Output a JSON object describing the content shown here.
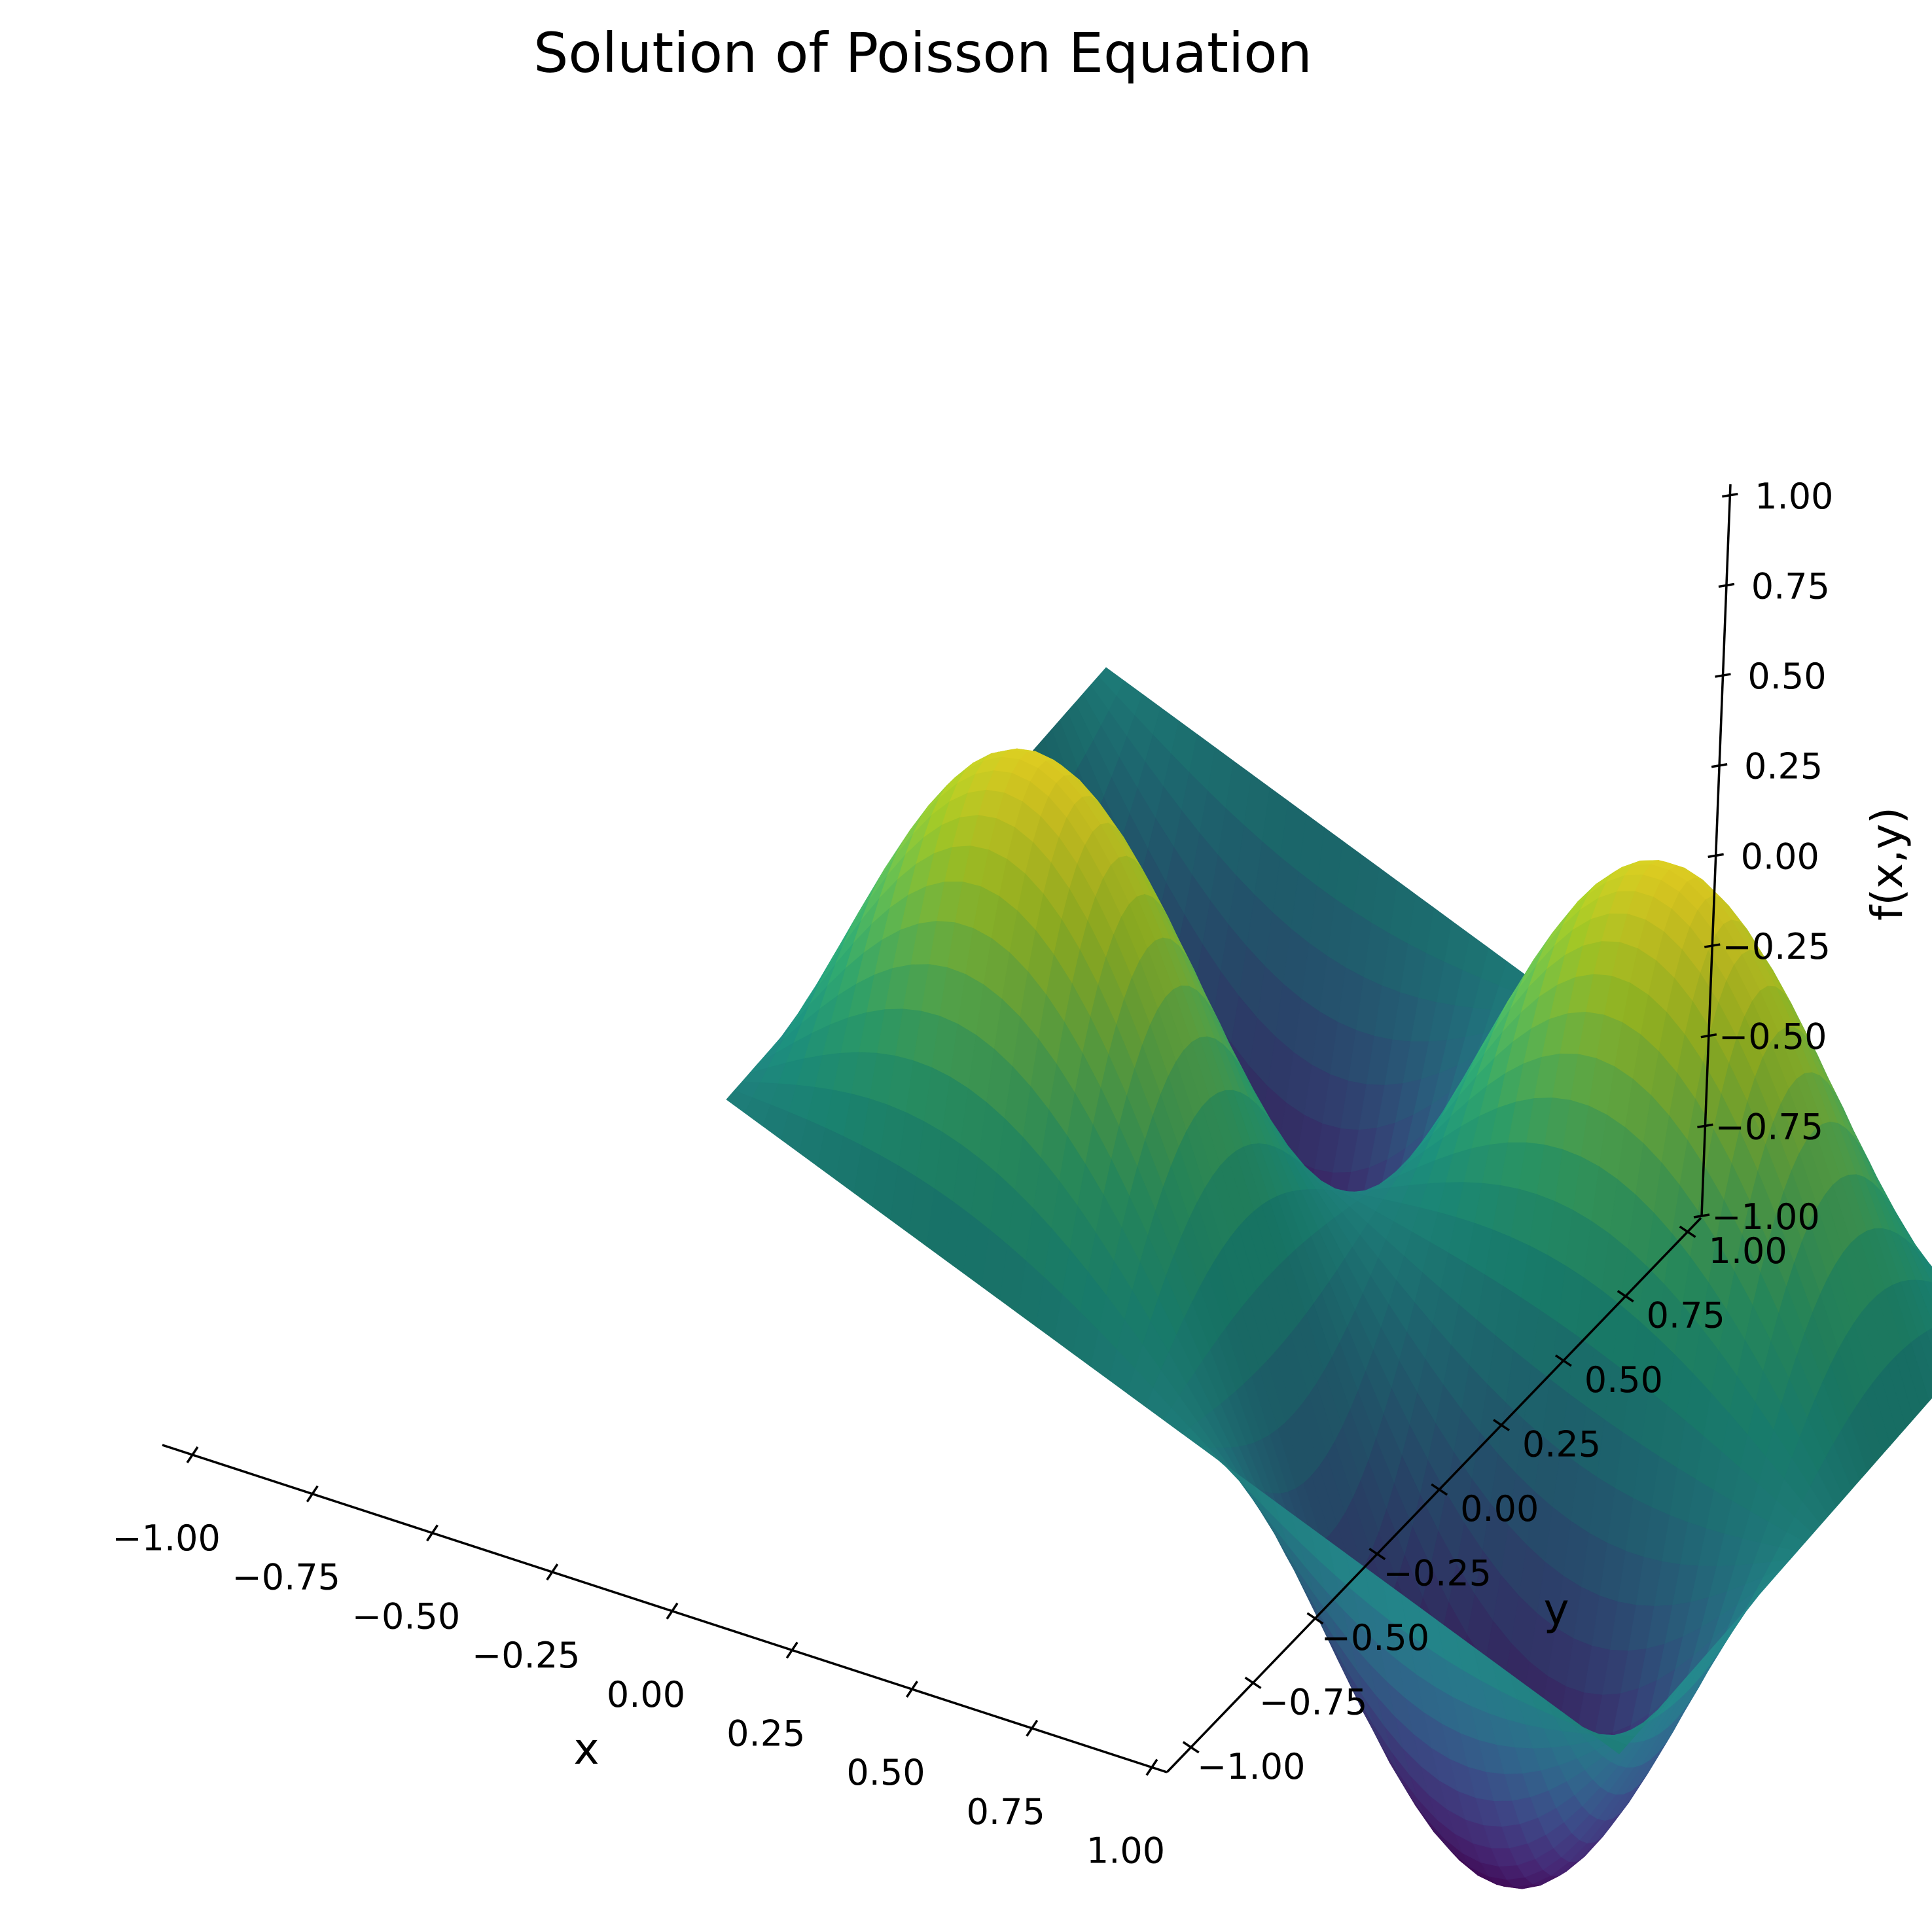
{
  "chart_data": {
    "type": "surface3d",
    "title": "Solution of Poisson Equation",
    "xlabel": "x",
    "ylabel": "y",
    "zlabel": "f(x,y)",
    "xlim": [
      -1.0,
      1.0
    ],
    "ylim": [
      -1.0,
      1.0
    ],
    "zlim": [
      -1.0,
      1.0
    ],
    "x_ticks": [
      "−1.00",
      "−0.75",
      "−0.50",
      "−0.25",
      "0.00",
      "0.25",
      "0.50",
      "0.75",
      "1.00"
    ],
    "y_ticks": [
      "−1.00",
      "−0.75",
      "−0.50",
      "−0.25",
      "0.00",
      "0.25",
      "0.50",
      "0.75",
      "1.00"
    ],
    "z_ticks": [
      "−1.00",
      "−0.75",
      "−0.50",
      "−0.25",
      "0.00",
      "0.25",
      "0.50",
      "0.75",
      "1.00"
    ],
    "surface": {
      "function": "sin(pi*x)*sin(pi*y)",
      "grid_points": 50,
      "colormap": "viridis",
      "max": 1.0,
      "min": -1.0
    },
    "grid": false
  },
  "colors": {
    "viridis_stops": [
      "#440154",
      "#482878",
      "#3e4989",
      "#31688e",
      "#26828e",
      "#1f9e89",
      "#35b779",
      "#6ece58",
      "#b5de2b",
      "#fde725"
    ]
  }
}
